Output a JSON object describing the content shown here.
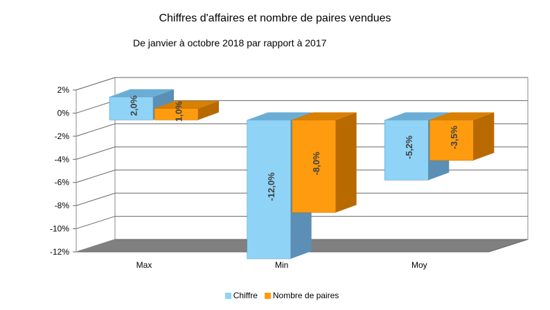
{
  "chart_data": {
    "type": "bar",
    "title": "Chiffres d'affaires et nombre de paires vendues",
    "subtitle": "De janvier à octobre 2018 par rapport à 2017",
    "categories": [
      "Max",
      "Min",
      "Moy"
    ],
    "series": [
      {
        "name": "Chiffre",
        "values": [
          2.0,
          -12.0,
          -5.2
        ],
        "labels": [
          "2,0%",
          "-12,0%",
          "-5,2%"
        ],
        "color": "#8fd3f7",
        "side_color": "#5b8fb5",
        "top_color": "#6aaed6"
      },
      {
        "name": "Nombre de paires",
        "values": [
          1.0,
          -8.0,
          -3.5
        ],
        "labels": [
          "1,0%",
          "-8,0%",
          "-3,5%"
        ],
        "color": "#ff9b0f",
        "side_color": "#b86a00",
        "top_color": "#d98000"
      }
    ],
    "ylim": [
      -12,
      2
    ],
    "yticks": [
      2,
      0,
      -2,
      -4,
      -6,
      -8,
      -10,
      -12
    ],
    "ytick_labels": [
      "2%",
      "0%",
      "-2%",
      "-4%",
      "-6%",
      "-8%",
      "-10%",
      "-12%"
    ],
    "xlabel": "",
    "ylabel": "",
    "grid": true,
    "legend_position": "bottom"
  }
}
